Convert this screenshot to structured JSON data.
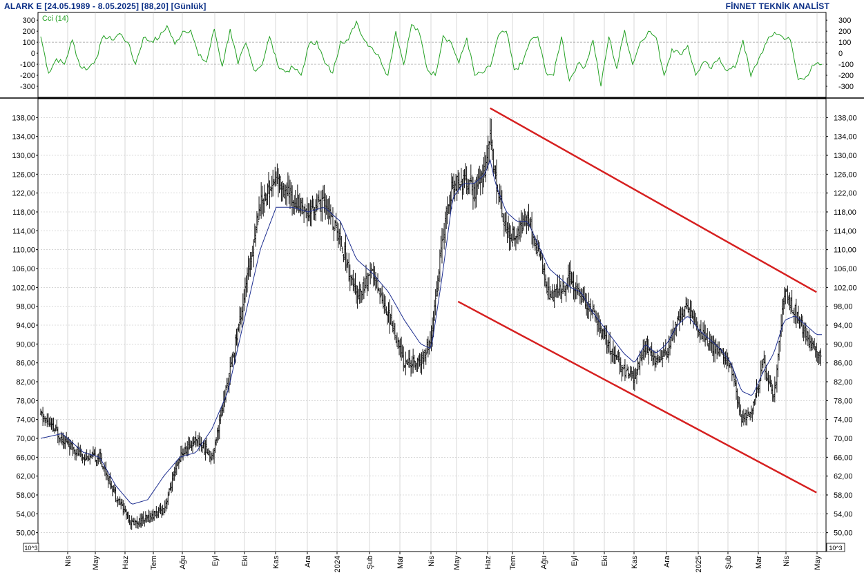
{
  "header": {
    "title": "ALARK E  [24.05.1989 - 8.05.2025]  [88,20]  [Günlük]",
    "brand": "FİNNET TEKNİK ANALİST"
  },
  "colors": {
    "price_bars": "#111111",
    "moving_average": "#1c2d8f",
    "cci_line": "#22a022",
    "channel": "#d62020",
    "header_text": "#0b2f86",
    "grid": "#bdbdbd"
  },
  "chart_data": [
    {
      "type": "line",
      "panel": "indicator",
      "series": [
        {
          "name": "Cci (14)",
          "values": [
            150,
            -180,
            -50,
            -100,
            120,
            -120,
            -140,
            -50,
            160,
            120,
            180,
            100,
            -100,
            140,
            110,
            140,
            250,
            80,
            200,
            210,
            -20,
            -80,
            220,
            -120,
            220,
            -100,
            90,
            -150,
            -110,
            150,
            -100,
            -170,
            -130,
            -200,
            80,
            110,
            -90,
            -180,
            110,
            120,
            290,
            120,
            50,
            -50,
            -200,
            200,
            -100,
            260,
            180,
            -150,
            -200,
            160,
            100,
            -90,
            140,
            -200,
            -180,
            -120,
            160,
            200,
            -150,
            -100,
            110,
            150,
            -170,
            -200,
            150,
            -250,
            -100,
            -120,
            120,
            -300,
            150,
            -140,
            210,
            -100,
            100,
            200,
            140,
            -200,
            40,
            -10,
            70,
            -200,
            -80,
            -140,
            -40,
            -160,
            -130,
            120,
            -210,
            -50,
            100,
            190,
            150,
            120,
            -240,
            -210,
            -110,
            -100
          ]
        }
      ],
      "yticks": [
        300,
        200,
        100,
        0,
        -100,
        -200,
        -300
      ],
      "ytick_labels": [
        "300",
        "200",
        "100",
        "0",
        "-100",
        "-200",
        "-300"
      ],
      "ylim": [
        -400,
        370
      ],
      "reference_lines": [
        100,
        -100
      ]
    },
    {
      "type": "bar",
      "style": "ohlc",
      "panel": "price",
      "ylabel": "10^3",
      "ylim": [
        46,
        142
      ],
      "yticks": [
        138,
        134,
        130,
        126,
        122,
        118,
        114,
        110,
        106,
        102,
        98,
        94,
        90,
        86,
        82,
        78,
        74,
        70,
        66,
        62,
        58,
        54,
        50
      ],
      "ytick_labels": [
        "138,00",
        "134,00",
        "130,00",
        "126,00",
        "122,00",
        "118,00",
        "114,00",
        "110,00",
        "106,00",
        "102,00",
        "98,00",
        "94,00",
        "90,00",
        "86,00",
        "82,00",
        "78,00",
        "74,00",
        "70,00",
        "66,00",
        "62,00",
        "58,00",
        "54,00",
        "50,00"
      ],
      "x_labels": [
        "Nis",
        "May",
        "Haz",
        "Tem",
        "Ağu",
        "Eyl",
        "Eki",
        "Kas",
        "Ara",
        "2024",
        "Şub",
        "Mar",
        "Nis",
        "May",
        "Haz",
        "Tem",
        "Ağu",
        "Eyl",
        "Eki",
        "Kas",
        "Ara",
        "2025",
        "Şub",
        "Mar",
        "Nis",
        "May"
      ],
      "price_path": [
        [
          0,
          75
        ],
        [
          4,
          70
        ],
        [
          8,
          66
        ],
        [
          11,
          66
        ],
        [
          14,
          58
        ],
        [
          17,
          52
        ],
        [
          20,
          53
        ],
        [
          23,
          55
        ],
        [
          26,
          66
        ],
        [
          29,
          70
        ],
        [
          32,
          66
        ],
        [
          35,
          82
        ],
        [
          38,
          100
        ],
        [
          41,
          120
        ],
        [
          44,
          125
        ],
        [
          47,
          121
        ],
        [
          50,
          118
        ],
        [
          53,
          120
        ],
        [
          56,
          112
        ],
        [
          59,
          100
        ],
        [
          62,
          105
        ],
        [
          65,
          96
        ],
        [
          68,
          86
        ],
        [
          71,
          86
        ],
        [
          73,
          91
        ],
        [
          75,
          112
        ],
        [
          77,
          124
        ],
        [
          79,
          125
        ],
        [
          81,
          122
        ],
        [
          83,
          127
        ],
        [
          84,
          134
        ],
        [
          85,
          125
        ],
        [
          87,
          114
        ],
        [
          89,
          113
        ],
        [
          91,
          117
        ],
        [
          93,
          110
        ],
        [
          95,
          100
        ],
        [
          97,
          101
        ],
        [
          99,
          104
        ],
        [
          101,
          100
        ],
        [
          103,
          97
        ],
        [
          105,
          92
        ],
        [
          107,
          88
        ],
        [
          109,
          84
        ],
        [
          111,
          83
        ],
        [
          113,
          90
        ],
        [
          115,
          86
        ],
        [
          117,
          88
        ],
        [
          119,
          95
        ],
        [
          121,
          98
        ],
        [
          123,
          93
        ],
        [
          125,
          90
        ],
        [
          127,
          88
        ],
        [
          129,
          85
        ],
        [
          131,
          74
        ],
        [
          133,
          76
        ],
        [
          135,
          86
        ],
        [
          137,
          78
        ],
        [
          139,
          101
        ],
        [
          141,
          97
        ],
        [
          143,
          92
        ],
        [
          145,
          88
        ]
      ],
      "ma_path": [
        [
          0,
          70
        ],
        [
          4,
          71
        ],
        [
          8,
          67
        ],
        [
          11,
          66
        ],
        [
          14,
          60
        ],
        [
          17,
          56
        ],
        [
          20,
          57
        ],
        [
          23,
          62
        ],
        [
          26,
          66
        ],
        [
          29,
          67
        ],
        [
          32,
          72
        ],
        [
          35,
          80
        ],
        [
          38,
          95
        ],
        [
          41,
          110
        ],
        [
          44,
          119
        ],
        [
          47,
          119
        ],
        [
          50,
          118
        ],
        [
          53,
          119
        ],
        [
          56,
          116
        ],
        [
          59,
          108
        ],
        [
          62,
          105
        ],
        [
          65,
          101
        ],
        [
          68,
          95
        ],
        [
          71,
          90
        ],
        [
          73,
          89
        ],
        [
          75,
          104
        ],
        [
          77,
          121
        ],
        [
          79,
          124
        ],
        [
          81,
          124
        ],
        [
          83,
          126
        ],
        [
          84,
          129
        ],
        [
          85,
          124
        ],
        [
          87,
          118
        ],
        [
          89,
          116
        ],
        [
          91,
          116
        ],
        [
          93,
          111
        ],
        [
          95,
          106
        ],
        [
          97,
          104
        ],
        [
          99,
          102
        ],
        [
          101,
          101
        ],
        [
          103,
          97
        ],
        [
          105,
          94
        ],
        [
          107,
          91
        ],
        [
          109,
          88
        ],
        [
          111,
          86
        ],
        [
          113,
          90
        ],
        [
          115,
          88
        ],
        [
          117,
          90
        ],
        [
          119,
          94
        ],
        [
          121,
          96
        ],
        [
          123,
          93
        ],
        [
          125,
          91
        ],
        [
          127,
          89
        ],
        [
          129,
          86
        ],
        [
          131,
          80
        ],
        [
          133,
          79
        ],
        [
          135,
          84
        ],
        [
          137,
          88
        ],
        [
          139,
          95
        ],
        [
          141,
          96
        ],
        [
          143,
          94
        ],
        [
          145,
          92
        ]
      ],
      "channel": {
        "upper": [
          [
            84,
            140
          ],
          [
            145,
            101
          ]
        ],
        "lower": [
          [
            78,
            99
          ],
          [
            145,
            58.5
          ]
        ]
      }
    }
  ]
}
